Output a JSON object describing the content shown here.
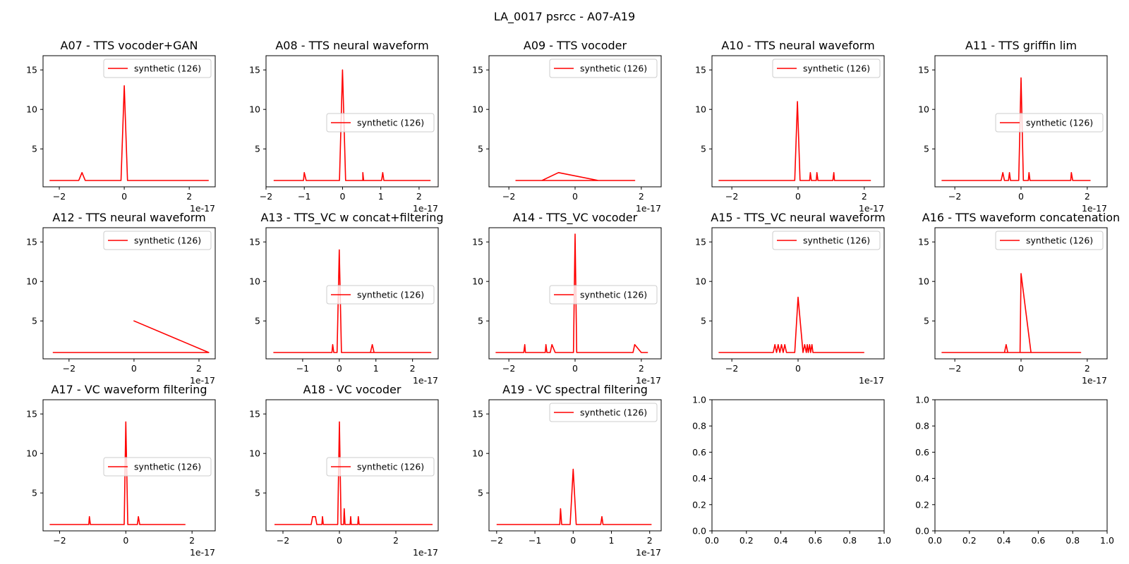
{
  "figure": {
    "title": "LA_0017 psrcc - A07-A19"
  },
  "legend_label": "synthetic (126)",
  "colors": {
    "line": "#ff0000",
    "axes": "#000000",
    "background": "#ffffff"
  },
  "chart_data": [
    {
      "type": "line",
      "title": "A07 - TTS vocoder+GAN",
      "xlim": [
        -2.5,
        2.8
      ],
      "ylim": [
        0.2,
        16.8
      ],
      "xticks": [
        "-2",
        "0",
        "2"
      ],
      "x_exponent": "1e-17",
      "yticks": [
        "5",
        "10",
        "15"
      ],
      "legend_position": "upper-right",
      "series": [
        {
          "name": "synthetic (126)",
          "points": [
            [
              -2.3,
              1
            ],
            [
              -1.4,
              1
            ],
            [
              -1.3,
              2
            ],
            [
              -1.2,
              1
            ],
            [
              -0.1,
              1
            ],
            [
              0,
              13
            ],
            [
              0.1,
              1
            ],
            [
              2.6,
              1
            ]
          ]
        }
      ]
    },
    {
      "type": "line",
      "title": "A08 - TTS neural waveform",
      "xlim": [
        -2.0,
        2.5
      ],
      "ylim": [
        0.2,
        16.8
      ],
      "xticks": [
        "-2",
        "-1",
        "0",
        "1",
        "2"
      ],
      "x_exponent": "1e-17",
      "yticks": [
        "5",
        "10",
        "15"
      ],
      "legend_position": "center-right",
      "series": [
        {
          "name": "synthetic (126)",
          "points": [
            [
              -1.8,
              1
            ],
            [
              -1.02,
              1
            ],
            [
              -1,
              2
            ],
            [
              -0.95,
              1
            ],
            [
              -0.08,
              1
            ],
            [
              0,
              15
            ],
            [
              0.08,
              1
            ],
            [
              0.53,
              1
            ],
            [
              0.53,
              2
            ],
            [
              0.55,
              1
            ],
            [
              1.02,
              1
            ],
            [
              1.05,
              2
            ],
            [
              1.08,
              1
            ],
            [
              2.3,
              1
            ]
          ]
        }
      ]
    },
    {
      "type": "line",
      "title": "A09 - TTS vocoder",
      "xlim": [
        -2.6,
        2.6
      ],
      "ylim": [
        0.2,
        16.8
      ],
      "xticks": [
        "-2",
        "0",
        "2"
      ],
      "x_exponent": "1e-17",
      "yticks": [
        "5",
        "10",
        "15"
      ],
      "legend_position": "upper-right",
      "series": [
        {
          "name": "synthetic (126)",
          "points": [
            [
              -1.8,
              1
            ],
            [
              -1.0,
              1
            ],
            [
              -0.5,
              2
            ],
            [
              0.7,
              1
            ],
            [
              1.8,
              1
            ],
            [
              -1.2,
              1
            ]
          ]
        }
      ]
    },
    {
      "type": "line",
      "title": "A10 - TTS neural waveform",
      "xlim": [
        -2.6,
        2.6
      ],
      "ylim": [
        0.2,
        16.8
      ],
      "xticks": [
        "-2",
        "0",
        "2"
      ],
      "x_exponent": "1e-17",
      "yticks": [
        "5",
        "10",
        "15"
      ],
      "legend_position": "upper-right",
      "series": [
        {
          "name": "synthetic (126)",
          "points": [
            [
              -2.4,
              1
            ],
            [
              -0.1,
              1
            ],
            [
              -0.02,
              11
            ],
            [
              0.06,
              1
            ],
            [
              0.35,
              1
            ],
            [
              0.37,
              2
            ],
            [
              0.4,
              1
            ],
            [
              0.55,
              1
            ],
            [
              0.57,
              2
            ],
            [
              0.6,
              1
            ],
            [
              1.05,
              1
            ],
            [
              1.08,
              2
            ],
            [
              1.1,
              1
            ],
            [
              2.2,
              1
            ]
          ]
        }
      ]
    },
    {
      "type": "line",
      "title": "A11 - TTS griffin lim",
      "xlim": [
        -2.6,
        2.6
      ],
      "ylim": [
        0.2,
        16.8
      ],
      "xticks": [
        "-2",
        "0",
        "2"
      ],
      "x_exponent": "1e-17",
      "yticks": [
        "5",
        "10",
        "15"
      ],
      "legend_position": "center-right",
      "series": [
        {
          "name": "synthetic (126)",
          "points": [
            [
              -2.4,
              1
            ],
            [
              -0.6,
              1
            ],
            [
              -0.55,
              2
            ],
            [
              -0.5,
              1
            ],
            [
              -0.38,
              1
            ],
            [
              -0.35,
              2
            ],
            [
              -0.32,
              1
            ],
            [
              -0.07,
              1
            ],
            [
              0,
              14
            ],
            [
              0.07,
              1
            ],
            [
              0.22,
              1
            ],
            [
              0.24,
              2
            ],
            [
              0.27,
              1
            ],
            [
              1.5,
              1
            ],
            [
              1.52,
              2
            ],
            [
              1.56,
              1
            ],
            [
              2.1,
              1
            ]
          ]
        }
      ]
    },
    {
      "type": "line",
      "title": "A12 - TTS neural waveform",
      "xlim": [
        -2.8,
        2.5
      ],
      "ylim": [
        0.2,
        16.8
      ],
      "xticks": [
        "-2",
        "0",
        "2"
      ],
      "x_exponent": "1e-17",
      "yticks": [
        "5",
        "10",
        "15"
      ],
      "legend_position": "upper-right",
      "series": [
        {
          "name": "synthetic (126)",
          "points": [
            [
              -2.5,
              1
            ],
            [
              2.3,
              1
            ],
            [
              0,
              5
            ],
            [
              2.3,
              1
            ],
            [
              -1.4,
              1
            ]
          ]
        }
      ]
    },
    {
      "type": "line",
      "title": "A13 - TTS_VC w concat+filtering",
      "xlim": [
        -2.0,
        2.7
      ],
      "ylim": [
        0.2,
        16.8
      ],
      "xticks": [
        "-1",
        "0",
        "1",
        "2"
      ],
      "x_exponent": "1e-17",
      "yticks": [
        "5",
        "10",
        "15"
      ],
      "legend_position": "center-right",
      "series": [
        {
          "name": "synthetic (126)",
          "points": [
            [
              -1.8,
              1
            ],
            [
              -0.2,
              1
            ],
            [
              -0.18,
              2
            ],
            [
              -0.15,
              1
            ],
            [
              -0.06,
              1
            ],
            [
              0,
              14
            ],
            [
              0.06,
              1
            ],
            [
              0.85,
              1
            ],
            [
              0.9,
              2
            ],
            [
              0.95,
              1
            ],
            [
              2.5,
              1
            ],
            [
              0.6,
              1
            ]
          ]
        }
      ]
    },
    {
      "type": "line",
      "title": "A14 - TTS_VC vocoder",
      "xlim": [
        -2.6,
        2.6
      ],
      "ylim": [
        0.2,
        16.8
      ],
      "xticks": [
        "-2",
        "0",
        "2"
      ],
      "x_exponent": "1e-17",
      "yticks": [
        "5",
        "10",
        "15"
      ],
      "legend_position": "center-right",
      "series": [
        {
          "name": "synthetic (126)",
          "points": [
            [
              -2.4,
              1
            ],
            [
              -1.55,
              1
            ],
            [
              -1.52,
              2
            ],
            [
              -1.5,
              1
            ],
            [
              -0.9,
              1
            ],
            [
              -0.88,
              2
            ],
            [
              -0.85,
              1
            ],
            [
              -0.75,
              1
            ],
            [
              -0.7,
              2
            ],
            [
              -0.6,
              1
            ],
            [
              -0.05,
              1
            ],
            [
              0,
              16
            ],
            [
              0.05,
              1
            ],
            [
              1.75,
              1
            ],
            [
              1.8,
              2
            ],
            [
              2.0,
              1
            ],
            [
              2.2,
              1
            ]
          ]
        }
      ]
    },
    {
      "type": "line",
      "title": "A15 - TTS_VC neural waveform",
      "xlim": [
        -2.6,
        2.6
      ],
      "ylim": [
        0.2,
        16.8
      ],
      "xticks": [
        "-2",
        "0"
      ],
      "x_exponent": "1e-17",
      "yticks": [
        "5",
        "10",
        "15"
      ],
      "legend_position": "upper-right",
      "series": [
        {
          "name": "synthetic (126)",
          "points": [
            [
              -2.4,
              1
            ],
            [
              -0.75,
              1
            ],
            [
              -0.7,
              2
            ],
            [
              -0.65,
              1
            ],
            [
              -0.6,
              2
            ],
            [
              -0.55,
              1
            ],
            [
              -0.5,
              2
            ],
            [
              -0.45,
              1
            ],
            [
              -0.4,
              2
            ],
            [
              -0.35,
              1
            ],
            [
              -0.1,
              1
            ],
            [
              0,
              8
            ],
            [
              0.15,
              1
            ],
            [
              0.2,
              2
            ],
            [
              0.25,
              1
            ],
            [
              0.28,
              2
            ],
            [
              0.31,
              1
            ],
            [
              0.35,
              2
            ],
            [
              0.38,
              1
            ],
            [
              0.42,
              2
            ],
            [
              0.45,
              1
            ],
            [
              2.0,
              1
            ]
          ]
        }
      ]
    },
    {
      "type": "line",
      "title": "A16 - TTS waveform concatenation",
      "xlim": [
        -2.6,
        2.6
      ],
      "ylim": [
        0.2,
        16.8
      ],
      "xticks": [
        "-2",
        "0",
        "2"
      ],
      "x_exponent": "1e-17",
      "yticks": [
        "5",
        "10",
        "15"
      ],
      "legend_position": "upper-right",
      "series": [
        {
          "name": "synthetic (126)",
          "points": [
            [
              -2.4,
              1
            ],
            [
              -0.5,
              1
            ],
            [
              -0.45,
              2
            ],
            [
              -0.4,
              1
            ],
            [
              -0.03,
              1
            ],
            [
              0,
              11
            ],
            [
              0.3,
              1
            ],
            [
              1.8,
              1
            ],
            [
              -1.5,
              1
            ]
          ]
        }
      ]
    },
    {
      "type": "line",
      "title": "A17 - VC waveform filtering",
      "xlim": [
        -2.5,
        2.7
      ],
      "ylim": [
        0.2,
        16.8
      ],
      "xticks": [
        "-2",
        "0",
        "2"
      ],
      "x_exponent": "1e-17",
      "yticks": [
        "5",
        "10",
        "15"
      ],
      "legend_position": "center-right",
      "series": [
        {
          "name": "synthetic (126)",
          "points": [
            [
              -2.3,
              1
            ],
            [
              -1.12,
              1
            ],
            [
              -1.1,
              2
            ],
            [
              -1.07,
              1
            ],
            [
              -0.05,
              1
            ],
            [
              0,
              14
            ],
            [
              0.06,
              1
            ],
            [
              0.35,
              1
            ],
            [
              0.38,
              2
            ],
            [
              0.42,
              1
            ],
            [
              1.8,
              1
            ]
          ]
        }
      ]
    },
    {
      "type": "line",
      "title": "A18 - VC vocoder",
      "xlim": [
        -2.6,
        3.5
      ],
      "ylim": [
        0.2,
        16.8
      ],
      "xticks": [
        "-2",
        "0",
        "2"
      ],
      "x_exponent": "1e-17",
      "yticks": [
        "5",
        "10",
        "15"
      ],
      "legend_position": "center-right",
      "series": [
        {
          "name": "synthetic (126)",
          "points": [
            [
              -2.3,
              1
            ],
            [
              -1.0,
              1
            ],
            [
              -0.95,
              2
            ],
            [
              -0.85,
              2
            ],
            [
              -0.8,
              1
            ],
            [
              -0.62,
              1
            ],
            [
              -0.6,
              2
            ],
            [
              -0.57,
              1
            ],
            [
              -0.06,
              1
            ],
            [
              0,
              14
            ],
            [
              0.06,
              1
            ],
            [
              0.15,
              1
            ],
            [
              0.17,
              3
            ],
            [
              0.2,
              1
            ],
            [
              0.38,
              1
            ],
            [
              0.4,
              2
            ],
            [
              0.42,
              1
            ],
            [
              0.65,
              1
            ],
            [
              0.67,
              2
            ],
            [
              0.7,
              1
            ],
            [
              3.3,
              1
            ]
          ]
        }
      ]
    },
    {
      "type": "line",
      "title": "A19 - VC spectral filtering",
      "xlim": [
        -2.2,
        2.3
      ],
      "ylim": [
        0.2,
        16.8
      ],
      "xticks": [
        "-2",
        "-1",
        "0",
        "1",
        "2"
      ],
      "x_exponent": "1e-17",
      "yticks": [
        "5",
        "10",
        "15"
      ],
      "legend_position": "upper-right",
      "series": [
        {
          "name": "synthetic (126)",
          "points": [
            [
              -2,
              1
            ],
            [
              -0.35,
              1
            ],
            [
              -0.33,
              3
            ],
            [
              -0.3,
              1
            ],
            [
              -0.08,
              1
            ],
            [
              0,
              8
            ],
            [
              0.08,
              1
            ],
            [
              0.72,
              1
            ],
            [
              0.75,
              2
            ],
            [
              0.78,
              1
            ],
            [
              2.05,
              1
            ]
          ]
        }
      ]
    },
    {
      "type": "line",
      "title": "",
      "xlim": [
        0,
        1
      ],
      "ylim": [
        0,
        1
      ],
      "xticks": [
        "0.0",
        "0.2",
        "0.4",
        "0.6",
        "0.8",
        "1.0"
      ],
      "yticks": [
        "0.0",
        "0.2",
        "0.4",
        "0.6",
        "0.8",
        "1.0"
      ],
      "series": []
    },
    {
      "type": "line",
      "title": "",
      "xlim": [
        0,
        1
      ],
      "ylim": [
        0,
        1
      ],
      "xticks": [
        "0.0",
        "0.2",
        "0.4",
        "0.6",
        "0.8",
        "1.0"
      ],
      "yticks": [
        "0.0",
        "0.2",
        "0.4",
        "0.6",
        "0.8",
        "1.0"
      ],
      "series": []
    }
  ]
}
